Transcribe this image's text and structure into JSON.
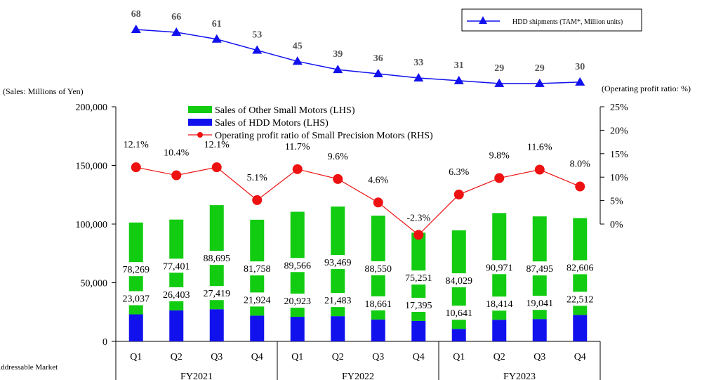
{
  "chart_data": {
    "type": "bar",
    "categories": [
      "Q1",
      "Q2",
      "Q3",
      "Q4",
      "Q1",
      "Q2",
      "Q3",
      "Q4",
      "Q1",
      "Q2",
      "Q3",
      "Q4"
    ],
    "groups": [
      {
        "label": "FY2021",
        "span": 4
      },
      {
        "label": "FY2022",
        "span": 4
      },
      {
        "label": "FY2023",
        "span": 4
      }
    ],
    "y_left": {
      "unit_label": "(Sales: Millions of Yen)",
      "ylim": [
        0,
        200000
      ],
      "ticks": [
        0,
        50000,
        100000,
        150000,
        200000
      ],
      "tick_labels": [
        "0",
        "50,000",
        "100,000",
        "150,000",
        "200,000"
      ]
    },
    "y_right": {
      "unit_label": "(Operating profit ratio: %)",
      "ylim": [
        -10,
        25
      ],
      "ticks": [
        0,
        5,
        10,
        15,
        20,
        25
      ],
      "tick_labels": [
        "0%",
        "5%",
        "10%",
        "15%",
        "20%",
        "25%"
      ]
    },
    "series": [
      {
        "name": "Sales of HDD Motors (LHS)",
        "kind": "bar",
        "color": "#1111ee",
        "values": [
          23037,
          26403,
          27419,
          21924,
          20923,
          21483,
          18661,
          17395,
          10641,
          18414,
          19041,
          22512
        ],
        "labels": [
          "23,037",
          "26,403",
          "27,419",
          "21,924",
          "20,923",
          "21,483",
          "18,661",
          "17,395",
          "10,641",
          "18,414",
          "19,041",
          "22,512"
        ]
      },
      {
        "name": "Sales of Other Small Motors (LHS)",
        "kind": "bar-stacked",
        "color": "#11cc11",
        "values": [
          78269,
          77401,
          88695,
          81758,
          89566,
          93469,
          88550,
          75251,
          84029,
          90971,
          87495,
          82606
        ],
        "labels": [
          "78,269",
          "77,401",
          "88,695",
          "81,758",
          "89,566",
          "93,469",
          "88,550",
          "75,251",
          "84,029",
          "90,971",
          "87,495",
          "82,606"
        ]
      },
      {
        "name": "Operating profit ratio of Small Precision Motors (RHS)",
        "kind": "line",
        "axis": "right",
        "color": "#ee1111",
        "values": [
          12.1,
          10.4,
          12.1,
          5.1,
          11.7,
          9.6,
          4.6,
          -2.3,
          6.3,
          9.8,
          11.6,
          8.0
        ],
        "labels": [
          "12.1%",
          "10.4%",
          "12.1%",
          "5.1%",
          "11.7%",
          "9.6%",
          "4.6%",
          "-2.3%",
          "6.3%",
          "9.8%",
          "11.6%",
          "8.0%"
        ]
      },
      {
        "name": "HDD shipments (TAM*, Million units)",
        "kind": "line",
        "axis": "none",
        "color": "#1111ee",
        "values": [
          68,
          66,
          61,
          53,
          45,
          39,
          36,
          33,
          31,
          29,
          29,
          30
        ],
        "labels": [
          "68",
          "66",
          "61",
          "53",
          "45",
          "39",
          "36",
          "33",
          "31",
          "29",
          "29",
          "30"
        ]
      }
    ],
    "legend": {
      "placement": "top-center",
      "items": [
        {
          "label": "Sales of Other Small Motors (LHS)",
          "color": "#11cc11",
          "marker": "rect"
        },
        {
          "label": "Sales of HDD Motors (LHS)",
          "color": "#1111ee",
          "marker": "rect"
        },
        {
          "label": "Operating profit ratio of Small Precision Motors (RHS)",
          "color": "#ee1111",
          "marker": "line-dot"
        }
      ]
    },
    "hdd_legend": {
      "placement": "top-right",
      "label": "HDD shipments (TAM*, Million units)",
      "color": "#1111ee",
      "marker": "line-triangle"
    },
    "footnote": "*TAM: Total Addressable Market",
    "grid": false
  }
}
